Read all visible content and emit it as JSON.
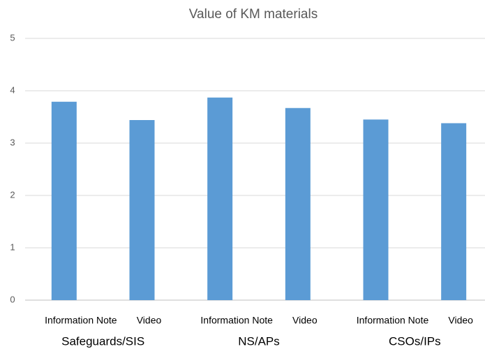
{
  "chart_data": {
    "type": "bar",
    "title": "Value of KM materials",
    "categories": [
      "Information Note",
      "Video",
      "Information Note",
      "Video",
      "Information Note",
      "Video"
    ],
    "groups": [
      "Safeguards/SIS",
      "NS/APs",
      "CSOs/IPs"
    ],
    "values": [
      3.79,
      3.44,
      3.87,
      3.67,
      3.45,
      3.38
    ],
    "color": "#5b9bd5",
    "ylim": [
      0,
      5
    ],
    "yticks": [
      0,
      1,
      2,
      3,
      4,
      5
    ],
    "grid": true
  }
}
